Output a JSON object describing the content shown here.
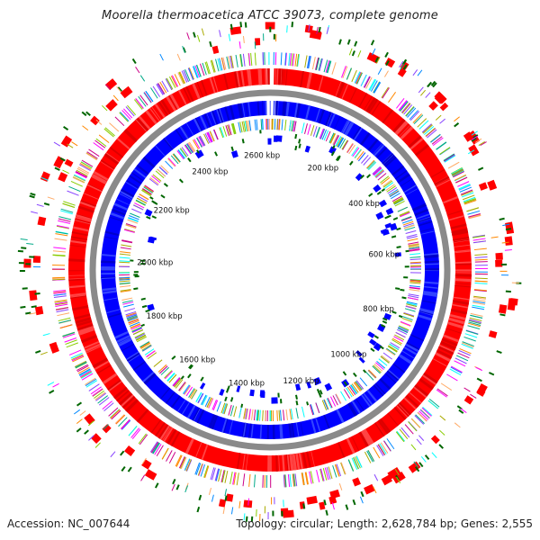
{
  "title": "Moorella thermoacetica ATCC 39073, complete genome",
  "genome": {
    "length_bp": 2628784,
    "tick_labels": [
      "200 kbp",
      "400 kbp",
      "600 kbp",
      "800 kbp",
      "1000 kbp",
      "1200 kbp",
      "1400 kbp",
      "1600 kbp",
      "1800 kbp",
      "2000 kbp",
      "2200 kbp",
      "2400 kbp",
      "2600 kbp"
    ]
  },
  "footer": {
    "accession": "Accession: NC_007644",
    "summary": "Topology: circular; Length: 2,628,784 bp; Genes: 2,555"
  },
  "colors": {
    "forward_cds": "#ff0000",
    "reverse_cds": "#0000ff",
    "backbone": "#888888",
    "gc_marks": "#006600",
    "cog_palette": [
      "#ff00ff",
      "#00ffff",
      "#ff8800",
      "#88cc00",
      "#cc0088",
      "#0088ff",
      "#aaaa00",
      "#00aa88",
      "#8844ff",
      "#ffaa66"
    ]
  }
}
